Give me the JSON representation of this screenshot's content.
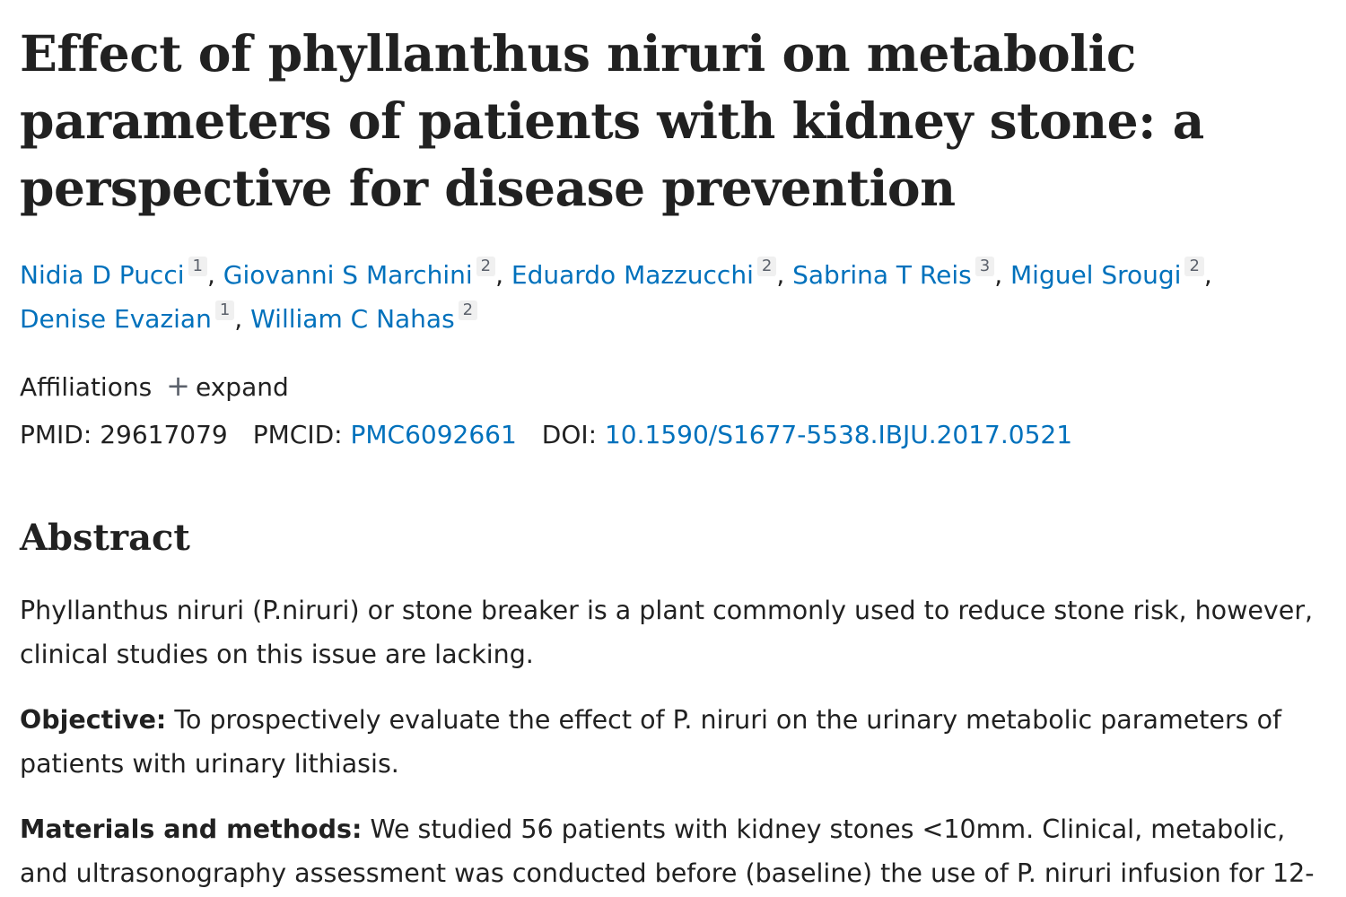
{
  "article": {
    "title": "Effect of phyllanthus niruri on metabolic parameters of patients with kidney stone: a perspective for disease prevention",
    "authors": [
      {
        "name": "Nidia D Pucci",
        "affiliation": "1"
      },
      {
        "name": "Giovanni S Marchini",
        "affiliation": "2"
      },
      {
        "name": "Eduardo Mazzucchi",
        "affiliation": "2"
      },
      {
        "name": "Sabrina T Reis",
        "affiliation": "3"
      },
      {
        "name": "Miguel Srougi",
        "affiliation": "2"
      },
      {
        "name": "Denise Evazian",
        "affiliation": "1"
      },
      {
        "name": "William C Nahas",
        "affiliation": "2"
      }
    ],
    "affiliations_label": "Affiliations",
    "expand_icon": "plus-icon",
    "expand_label": "expand",
    "pmid_label": "PMID:",
    "pmid": "29617079",
    "pmcid_label": "PMCID:",
    "pmcid": "PMC6092661",
    "doi_label": "DOI:",
    "doi": "10.1590/S1677-5538.IBJU.2017.0521"
  },
  "abstract": {
    "heading": "Abstract",
    "intro": "Phyllanthus niruri (P.niruri) or stone breaker is a plant commonly used to reduce stone risk, however, clinical studies on this issue are lacking.",
    "objective_label": "Objective:",
    "objective_text": "To prospectively evaluate the effect of P. niruri on the urinary metabolic parameters of patients with urinary lithiasis.",
    "methods_label": "Materials and methods:",
    "methods_text": "We studied 56 patients with kidney stones <10mm. Clinical, metabolic, and ultrasonography assessment was conducted before (baseline) the use of P. niruri infusion for 12-"
  },
  "colors": {
    "link": "#0071bc",
    "text": "#212121",
    "badge_bg": "#f0f0f0"
  }
}
